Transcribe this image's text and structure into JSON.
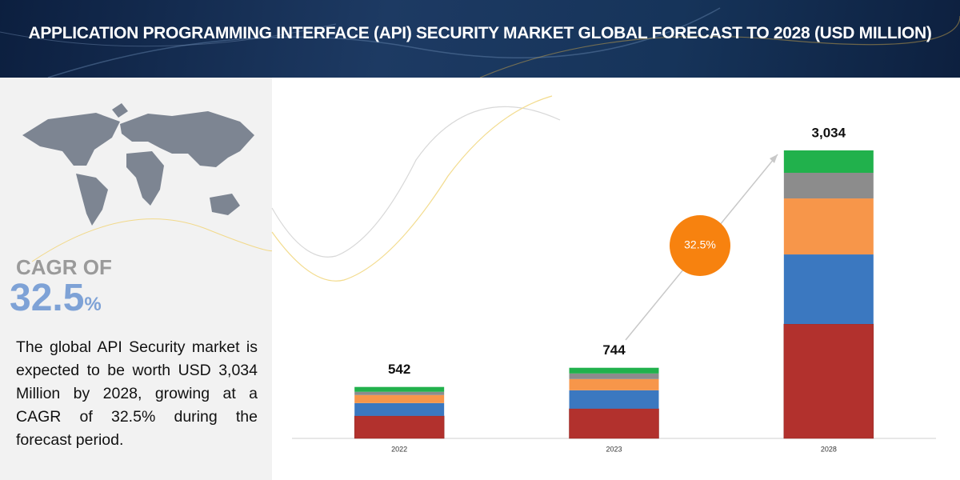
{
  "header": {
    "title": "APPLICATION PROGRAMMING INTERFACE (API) SECURITY MARKET GLOBAL FORECAST TO 2028 (USD MILLION)"
  },
  "sidebar": {
    "cagr_label": "CAGR OF",
    "cagr_value": "32.5",
    "cagr_unit": "%",
    "description": "The global API Security market is expected to be worth USD 3,034 Million by 2028, growing at a CAGR of 32.5% during the forecast period."
  },
  "chart_data": {
    "type": "stacked-bar",
    "categories": [
      "2022",
      "2023",
      "2028"
    ],
    "series": [
      {
        "color": "#b2312d",
        "values": [
          237,
          313,
          1205
        ]
      },
      {
        "color": "#3b78c0",
        "values": [
          135,
          194,
          733
        ]
      },
      {
        "color": "#f7964a",
        "values": [
          85,
          118,
          590
        ]
      },
      {
        "color": "#8c8c8c",
        "values": [
          34,
          59,
          270
        ]
      },
      {
        "color": "#21b14c",
        "values": [
          51,
          60,
          236
        ]
      }
    ],
    "totals": [
      542,
      744,
      3034
    ],
    "total_labels": [
      "542",
      "744",
      "3,034"
    ],
    "annotation": "32.5%",
    "annotation_color": "#f7820f"
  }
}
